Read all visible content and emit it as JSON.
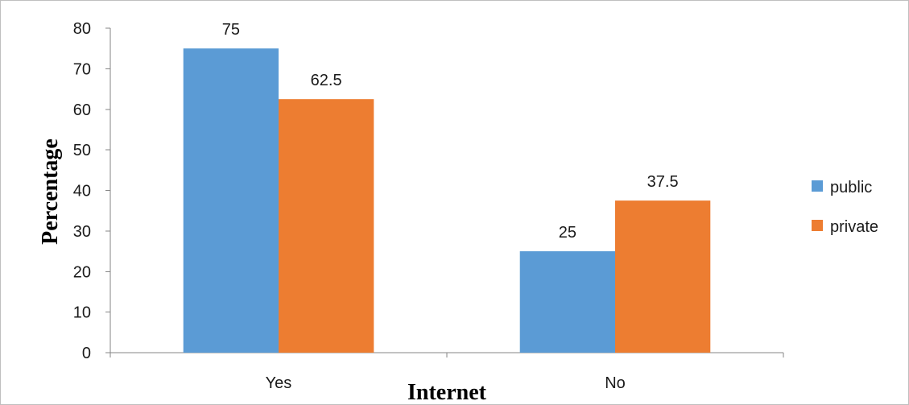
{
  "chart_data": {
    "type": "bar",
    "categories": [
      "Yes",
      "No"
    ],
    "series": [
      {
        "name": "public",
        "values": [
          75,
          25
        ],
        "color": "#5b9bd5"
      },
      {
        "name": "private",
        "values": [
          62.5,
          37.5
        ],
        "color": "#ed7d31"
      }
    ],
    "data_labels": [
      [
        "75",
        "25"
      ],
      [
        "62.5",
        "37.5"
      ]
    ],
    "title": "",
    "xlabel": "Internet",
    "ylabel": "Percentage",
    "ylim": [
      0,
      80
    ],
    "yticks": [
      "0",
      "10",
      "20",
      "30",
      "40",
      "50",
      "60",
      "70",
      "80"
    ],
    "grid": false,
    "legend_position": "right"
  }
}
